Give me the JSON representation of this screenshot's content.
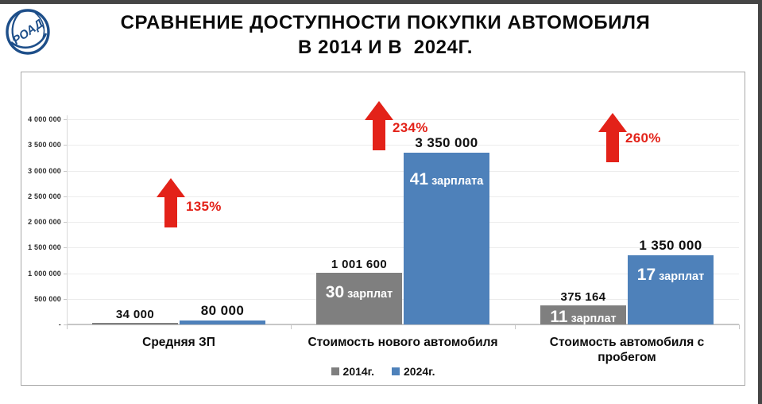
{
  "header": {
    "title_line1": "СРАВНЕНИЕ ДОСТУПНОСТИ ПОКУПКИ АВТОМОБИЛЯ",
    "title_line2": "В 2014 И В  2024Г.",
    "logo_text": "РОАД"
  },
  "colors": {
    "accent_red": "#e32219",
    "bar_2014": "#7f7f7f",
    "bar_2024": "#4e81ba",
    "frame": "#454545",
    "logo_blue": "#1d4e89"
  },
  "chart_data": {
    "type": "bar",
    "title": "Сравнение доступности покупки автомобиля в 2014 и в 2024г.",
    "categories": [
      "Средняя ЗП",
      "Стоимость нового автомобиля",
      "Стоимость автомобиля с пробегом"
    ],
    "series": [
      {
        "name": "2014г.",
        "color": "#7f7f7f",
        "values": [
          34000,
          1001600,
          375164
        ],
        "value_labels": [
          "34 000",
          "1 001 600",
          "375 164"
        ],
        "bar_texts": [
          "",
          "30 зарплат",
          "11 зарплат"
        ]
      },
      {
        "name": "2024г.",
        "color": "#4e81ba",
        "values": [
          80000,
          3350000,
          1350000
        ],
        "value_labels": [
          "80 000",
          "3 350 000",
          "1 350 000"
        ],
        "bar_texts": [
          "",
          "41 зарплата",
          "17 зарплат"
        ]
      }
    ],
    "annotations": [
      {
        "label": "135%"
      },
      {
        "label": "234%"
      },
      {
        "label": "260%"
      }
    ],
    "y_axis": {
      "min": 0,
      "max": 4000000,
      "tick_step": 500000,
      "tick_labels": [
        "4 000 000",
        "3 500 000",
        "3 000 000",
        "2 500 000",
        "2 000 000",
        "1 500 000",
        "1 000 000",
        "500 000",
        "-"
      ],
      "grid": true
    },
    "legend": {
      "position": "bottom",
      "items": [
        {
          "label": "2014г.",
          "color": "#7f7f7f"
        },
        {
          "label": "2024г.",
          "color": "#4e81ba"
        }
      ]
    }
  }
}
